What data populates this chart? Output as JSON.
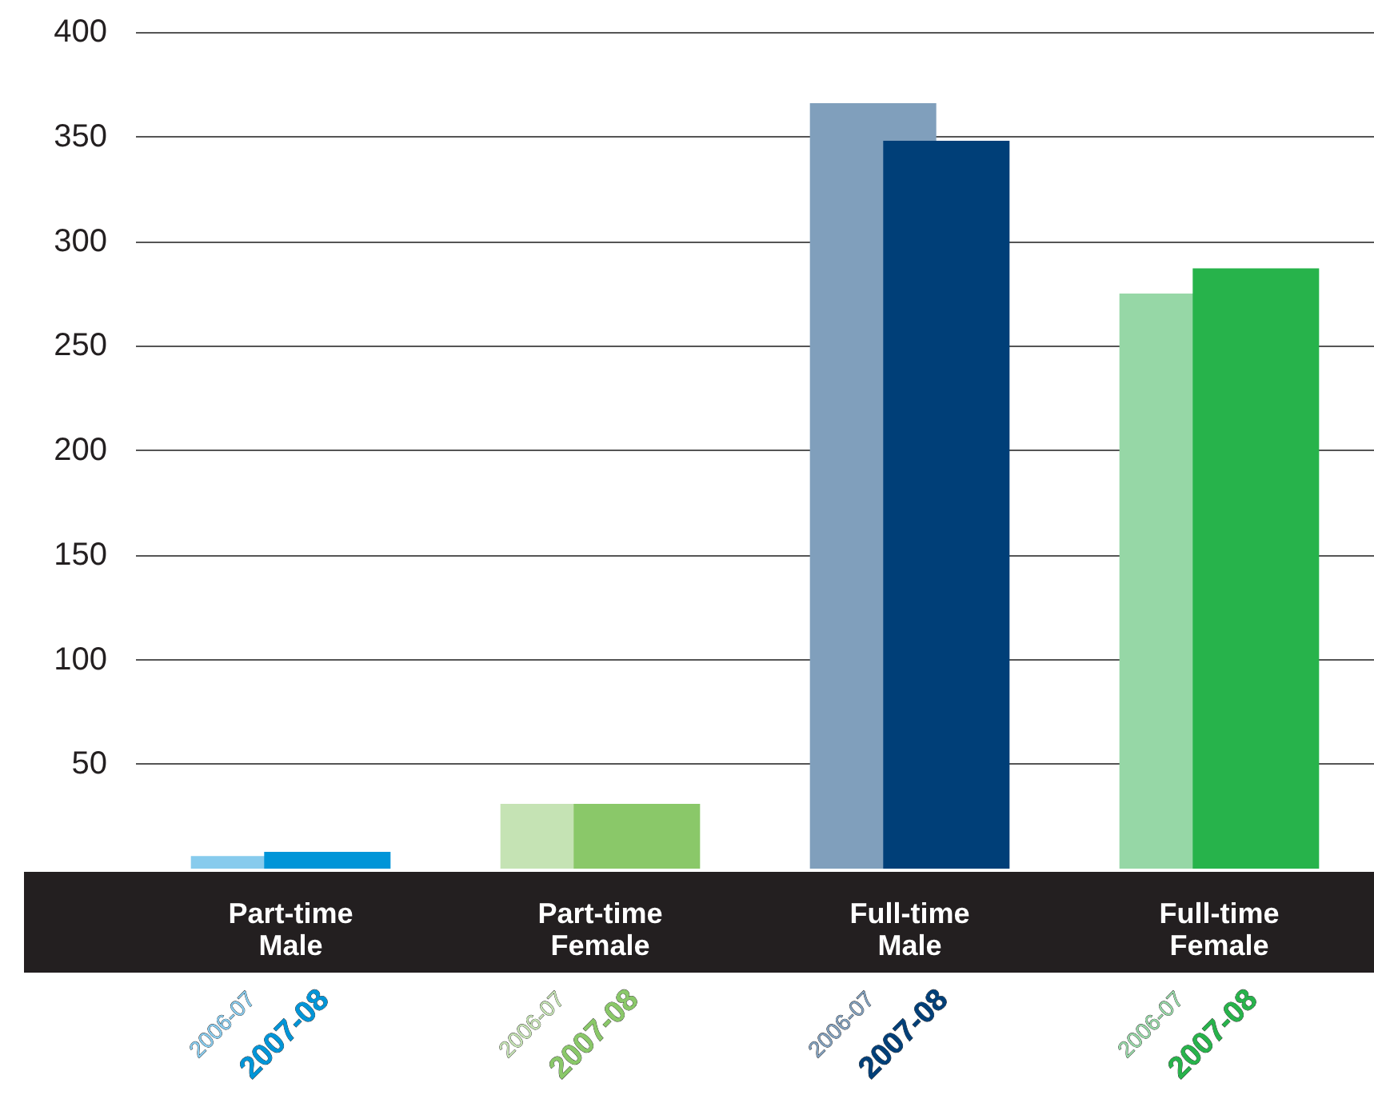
{
  "chart_data": {
    "type": "bar",
    "categories": [
      "Part-time Male",
      "Part-time Female",
      "Full-time Male",
      "Full-time Female"
    ],
    "series": [
      {
        "name": "2006-07",
        "colors": [
          "#87cbed",
          "#c5e3b4",
          "#809fbc",
          "#96d7a6"
        ],
        "values": [
          6,
          31,
          366,
          275
        ]
      },
      {
        "name": "2007-08",
        "colors": [
          "#0095d8",
          "#8ac869",
          "#003f78",
          "#27b34b"
        ],
        "values": [
          8,
          31,
          348,
          287
        ]
      }
    ],
    "ylim": [
      0,
      400
    ],
    "yticks": [
      50,
      100,
      150,
      200,
      250,
      300,
      350,
      400
    ],
    "grid": "y",
    "legend": false
  }
}
